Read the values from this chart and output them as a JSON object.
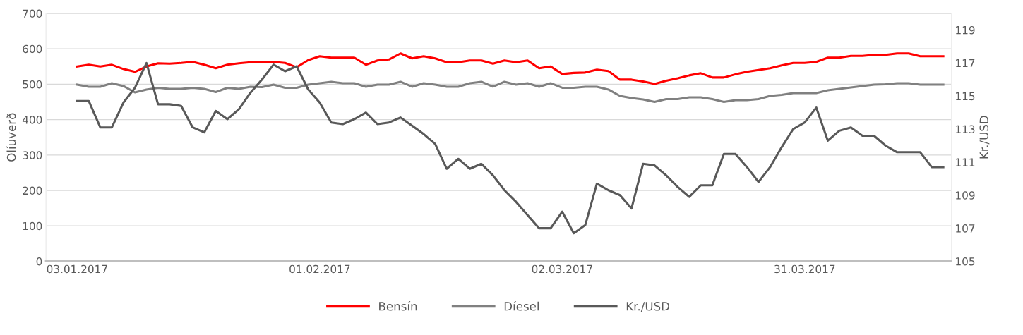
{
  "chart_data": {
    "type": "line",
    "categories": [
      "03.01.2017",
      null,
      null,
      null,
      null,
      null,
      null,
      null,
      null,
      null,
      null,
      null,
      null,
      null,
      null,
      null,
      null,
      null,
      null,
      null,
      null,
      "01.02.2017",
      null,
      null,
      null,
      null,
      null,
      null,
      null,
      null,
      null,
      null,
      null,
      null,
      null,
      null,
      null,
      null,
      null,
      null,
      null,
      null,
      "02.03.2017",
      null,
      null,
      null,
      null,
      null,
      null,
      null,
      null,
      null,
      null,
      null,
      null,
      null,
      null,
      null,
      null,
      null,
      null,
      null,
      null,
      "31.03.2017",
      null,
      null,
      null,
      null,
      null,
      null,
      null,
      null,
      null,
      null,
      null,
      null
    ],
    "ylabel": "Olíuverð",
    "y2label": "Kr./USD",
    "ylim": [
      0,
      700
    ],
    "yticks": [
      0,
      100,
      200,
      300,
      400,
      500,
      600,
      700
    ],
    "y2lim": [
      105,
      120
    ],
    "y2ticks": [
      105,
      107,
      109,
      111,
      113,
      115,
      117,
      119
    ],
    "grid": "y",
    "legend": "bottom",
    "marker": "none",
    "line_style": "solid",
    "series": [
      {
        "name": "Bensín",
        "color": "#ff0000",
        "values": [
          550,
          555,
          550,
          555,
          543,
          535,
          550,
          559,
          558,
          560,
          563,
          555,
          545,
          555,
          559,
          562,
          563,
          563,
          560,
          548,
          568,
          579,
          575,
          575,
          575,
          555,
          567,
          570,
          587,
          573,
          579,
          573,
          562,
          562,
          567,
          567,
          558,
          567,
          562,
          567,
          545,
          550,
          529,
          532,
          533,
          541,
          537,
          513,
          513,
          508,
          501,
          510,
          517,
          525,
          531,
          519,
          519,
          528,
          535,
          540,
          545,
          553,
          560,
          560,
          563,
          575,
          575,
          580,
          580,
          583,
          583,
          587,
          587,
          579,
          579,
          579
        ]
      },
      {
        "name": "Díesel",
        "color": "#808080",
        "values": [
          499,
          493,
          493,
          503,
          495,
          477,
          485,
          490,
          487,
          487,
          490,
          487,
          478,
          490,
          487,
          493,
          492,
          499,
          490,
          490,
          499,
          503,
          507,
          503,
          503,
          493,
          499,
          499,
          507,
          493,
          503,
          499,
          493,
          493,
          503,
          507,
          493,
          507,
          499,
          503,
          493,
          503,
          490,
          490,
          493,
          493,
          485,
          467,
          461,
          457,
          450,
          458,
          458,
          463,
          463,
          458,
          450,
          455,
          455,
          458,
          467,
          470,
          475,
          475,
          475,
          483,
          487,
          491,
          495,
          499,
          500,
          503,
          503,
          499,
          499,
          499
        ]
      },
      {
        "name": "Kr./USD",
        "color": "#595959",
        "axis": "y2",
        "values": [
          114.7,
          114.7,
          113.1,
          113.1,
          114.6,
          115.5,
          117.0,
          114.5,
          114.5,
          114.4,
          113.1,
          112.8,
          114.1,
          113.6,
          114.2,
          115.2,
          116.0,
          116.9,
          116.5,
          116.8,
          115.4,
          114.6,
          113.4,
          113.3,
          113.6,
          114.0,
          113.3,
          113.4,
          113.7,
          113.2,
          112.7,
          112.1,
          110.6,
          111.2,
          110.6,
          110.9,
          110.2,
          109.3,
          108.6,
          107.8,
          107.0,
          107.0,
          108.0,
          106.7,
          107.2,
          109.7,
          109.3,
          109.0,
          108.2,
          110.9,
          110.8,
          110.2,
          109.5,
          108.9,
          109.6,
          109.6,
          111.5,
          111.5,
          110.7,
          109.8,
          110.7,
          111.9,
          113.0,
          113.4,
          114.3,
          112.3,
          112.9,
          113.1,
          112.6,
          112.6,
          112.0,
          111.6,
          111.6,
          111.6,
          110.7,
          110.7
        ]
      }
    ]
  }
}
